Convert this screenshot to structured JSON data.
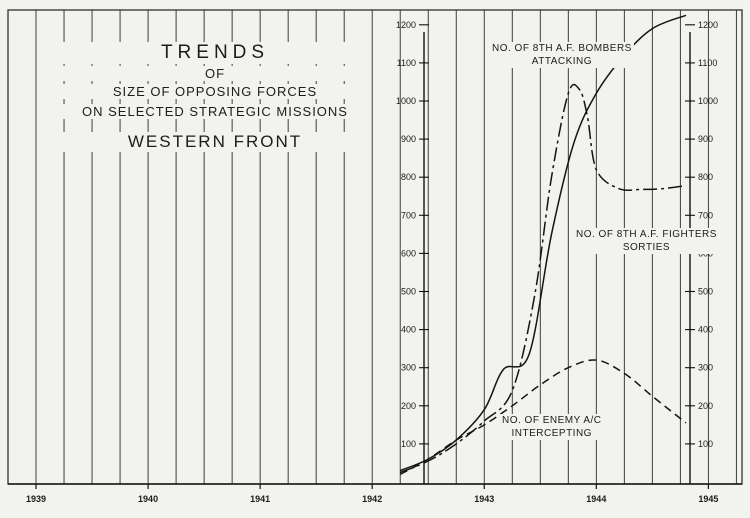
{
  "title": {
    "line1": "TRENDS",
    "line2": "OF",
    "line3": "SIZE OF OPPOSING FORCES",
    "line4": "ON SELECTED STRATEGIC MISSIONS",
    "line5": "WESTERN FRONT"
  },
  "chart_data": {
    "type": "line",
    "x_ticks": [
      "1939",
      "1940",
      "1941",
      "1942",
      "1943",
      "1944",
      "1945"
    ],
    "x_tick_values": [
      1939,
      1940,
      1941,
      1942,
      1943,
      1944,
      1945
    ],
    "xlim": [
      1938.75,
      1945.3
    ],
    "ylim": [
      0,
      1270
    ],
    "y_ticks_left": [
      "100",
      "200",
      "300",
      "400",
      "500",
      "600",
      "700",
      "800",
      "900",
      "1000",
      "1100",
      "1200"
    ],
    "y_ticks_right": [
      "100",
      "200",
      "300",
      "400",
      "500",
      "600",
      "700",
      "800",
      "900",
      "1000",
      "1100",
      "1200"
    ],
    "y_tick_values": [
      100,
      200,
      300,
      400,
      500,
      600,
      700,
      800,
      900,
      1000,
      1100,
      1200
    ],
    "grid": "vertical",
    "series": [
      {
        "name": "NO. OF 8TH A.F. BOMBERS ATTACKING",
        "style": "solid",
        "x": [
          1942.25,
          1942.5,
          1942.75,
          1943.0,
          1943.17,
          1943.4,
          1943.6,
          1943.8,
          1944.0,
          1944.25,
          1944.5,
          1944.8
        ],
        "y": [
          30,
          60,
          110,
          190,
          295,
          335,
          650,
          890,
          1020,
          1120,
          1190,
          1225
        ]
      },
      {
        "name": "NO. OF 8TH A.F. FIGHTERS SORTIES",
        "style": "dash-dot",
        "x": [
          1942.25,
          1942.5,
          1942.75,
          1943.0,
          1943.25,
          1943.45,
          1943.6,
          1943.75,
          1943.85,
          1943.92,
          1944.0,
          1944.2,
          1944.4,
          1944.6,
          1944.8
        ],
        "y": [
          25,
          55,
          100,
          160,
          240,
          490,
          800,
          1020,
          1030,
          960,
          820,
          770,
          768,
          770,
          778
        ]
      },
      {
        "name": "NO. OF ENEMY A/C INTERCEPTING",
        "style": "dashed",
        "x": [
          1942.25,
          1942.5,
          1942.75,
          1943.0,
          1943.25,
          1943.5,
          1943.75,
          1944.0,
          1944.25,
          1944.5,
          1944.8
        ],
        "y": [
          20,
          60,
          110,
          150,
          200,
          255,
          300,
          320,
          285,
          225,
          155
        ]
      }
    ]
  }
}
